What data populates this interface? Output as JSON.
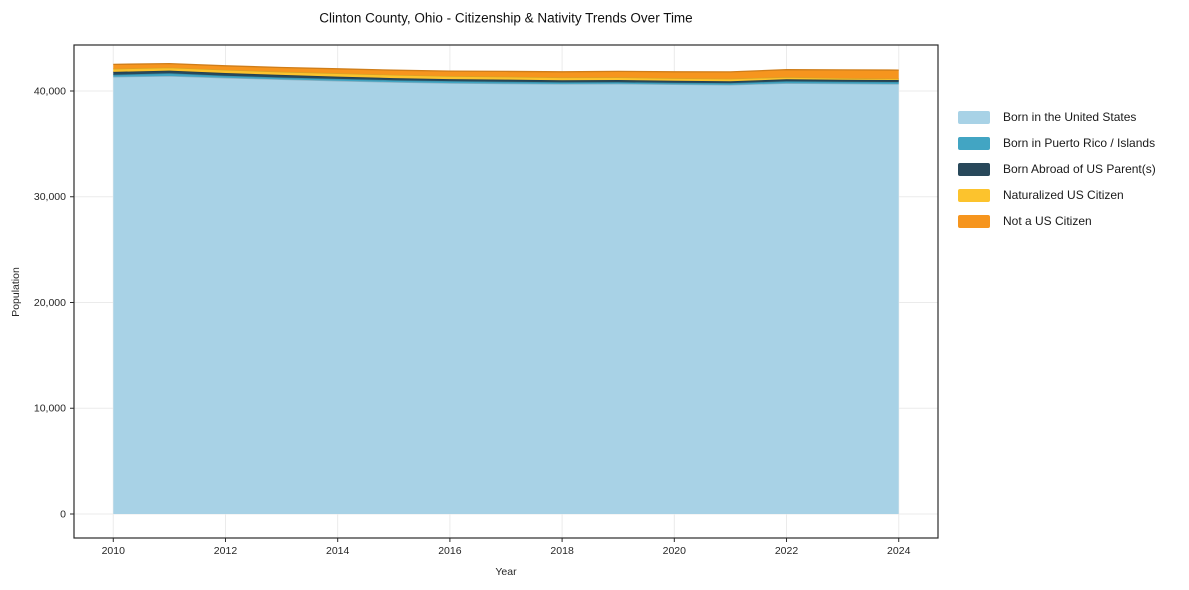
{
  "chart_data": {
    "type": "area",
    "stacked": true,
    "title": "Clinton County, Ohio - Citizenship & Nativity Trends Over Time",
    "xlabel": "Year",
    "ylabel": "Population",
    "x": [
      2010,
      2011,
      2012,
      2013,
      2014,
      2015,
      2016,
      2017,
      2018,
      2019,
      2020,
      2021,
      2022,
      2023,
      2024
    ],
    "series": [
      {
        "id": "born-us",
        "label": "Born in the United States",
        "color": "#a8d2e6",
        "values": [
          41340,
          41420,
          41250,
          41100,
          40960,
          40840,
          40750,
          40700,
          40660,
          40680,
          40620,
          40580,
          40740,
          40700,
          40660
        ]
      },
      {
        "id": "puerto-rico-islands",
        "label": "Born in Puerto Rico / Islands",
        "color": "#42a5c3",
        "values": [
          190,
          250,
          200,
          180,
          180,
          180,
          190,
          180,
          170,
          160,
          160,
          170,
          180,
          180,
          190
        ]
      },
      {
        "id": "born-abroad",
        "label": "Born Abroad of US Parent(s)",
        "color": "#28485a",
        "values": [
          280,
          260,
          250,
          240,
          220,
          200,
          190,
          200,
          190,
          200,
          190,
          180,
          190,
          190,
          190
        ]
      },
      {
        "id": "naturalized",
        "label": "Naturalized US Citizen",
        "color": "#fcc32d",
        "values": [
          290,
          280,
          300,
          300,
          310,
          300,
          280,
          270,
          260,
          250,
          240,
          230,
          200,
          150,
          120
        ]
      },
      {
        "id": "not-citizen",
        "label": "Not a US Citizen",
        "color": "#f6951e",
        "values": [
          420,
          380,
          380,
          400,
          430,
          450,
          470,
          500,
          540,
          560,
          610,
          650,
          700,
          780,
          820
        ]
      }
    ],
    "xticks": [
      2010,
      2012,
      2014,
      2016,
      2018,
      2020,
      2022,
      2024
    ],
    "yticks": [
      0,
      10000,
      20000,
      30000,
      40000
    ],
    "xlim": [
      2009.3,
      2024.7
    ],
    "ylim": [
      -2270,
      44350
    ],
    "grid": true,
    "legend_position": "right-outside"
  }
}
